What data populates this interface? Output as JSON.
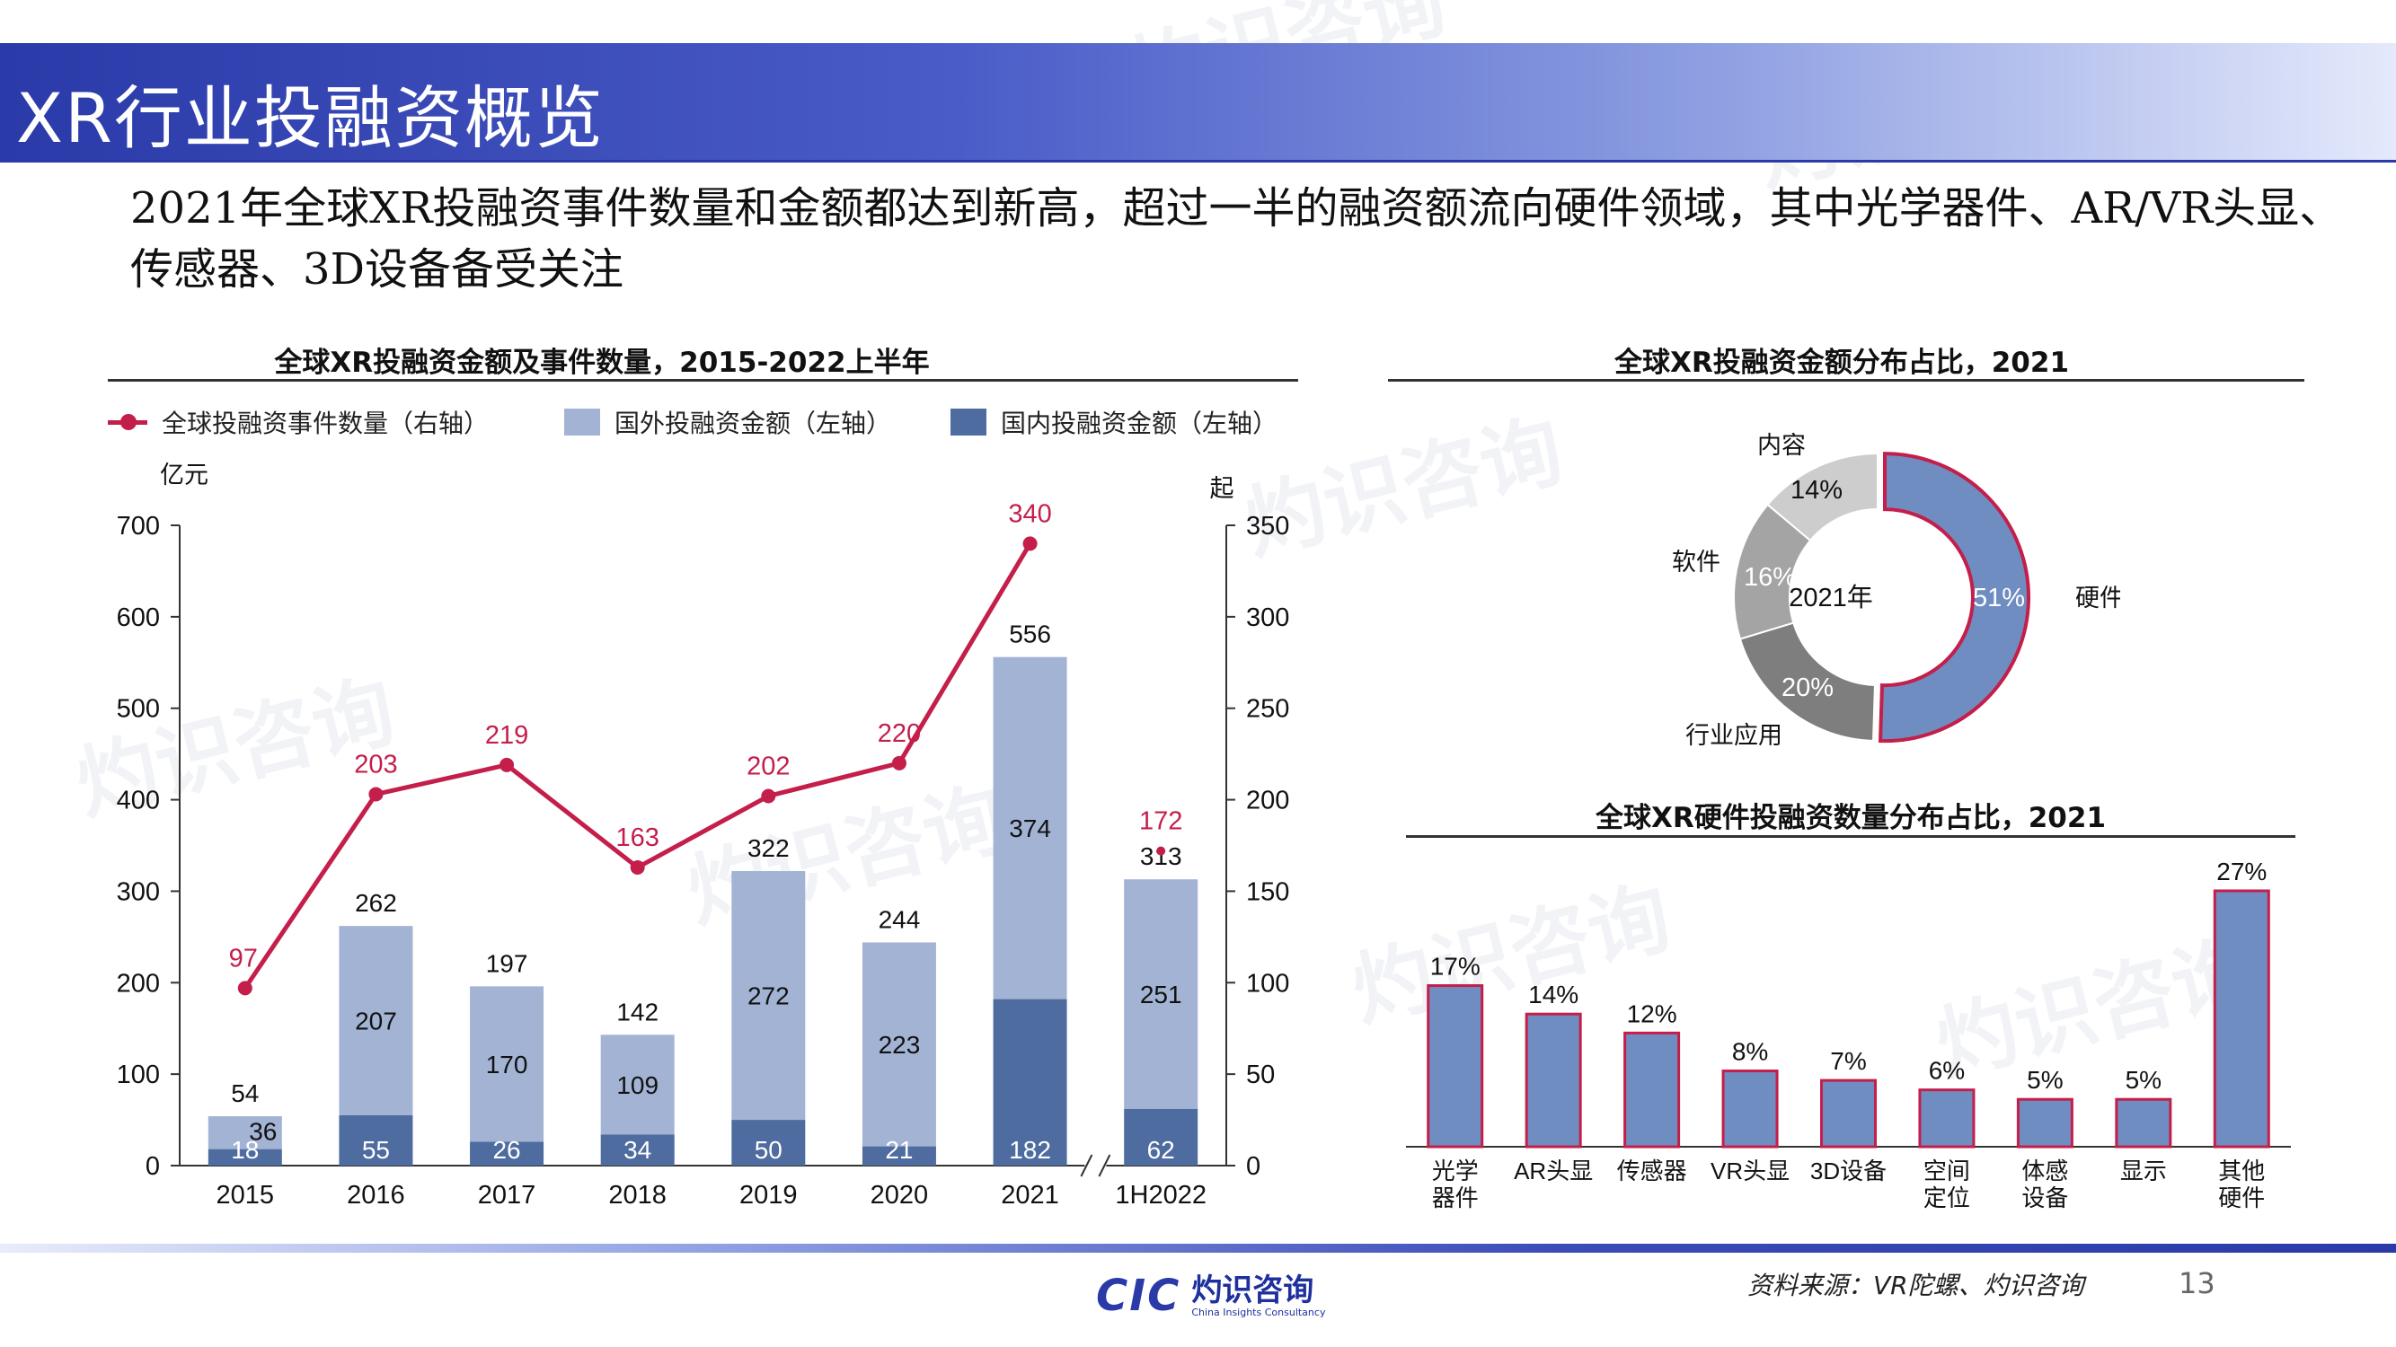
{
  "page": {
    "title": "XR行业投融资概览",
    "headline": "2021年全球XR投融资事件数量和金额都达到新高，超过一半的融资额流向硬件领域，其中光学器件、AR/VR头显、传感器、3D设备备受关注",
    "source": "资料来源：VR陀螺、灼识咨询",
    "page_number": "13",
    "logo": {
      "mark": "CIC",
      "name_cn": "灼识咨询",
      "name_en": "China Insights Consultancy"
    }
  },
  "colors": {
    "foreign": "#a3b3d4",
    "domestic": "#4e6c9f",
    "events": "#c41e4a",
    "donut_hardware": "#6f8dc1",
    "hardware_bar": "#6f8dc1",
    "hardware_bar_edge": "#c41e4a"
  },
  "chart_data": [
    {
      "type": "bar",
      "title": "全球XR投融资金额及事件数量，2015-2022上半年",
      "ylabel": "亿元",
      "y2label": "起",
      "ylim": [
        0,
        700
      ],
      "y2lim": [
        0,
        350
      ],
      "yticks": [
        "0",
        "100",
        "200",
        "300",
        "400",
        "500",
        "600",
        "700"
      ],
      "y2ticks": [
        "0",
        "50",
        "100",
        "150",
        "200",
        "250",
        "300",
        "350"
      ],
      "categories": [
        "2015",
        "2016",
        "2017",
        "2018",
        "2019",
        "2020",
        "2021",
        "1H2022"
      ],
      "stacked": true,
      "series": [
        {
          "name": "国内投融资金额（左轴）",
          "values": [
            18,
            55,
            26,
            34,
            50,
            21,
            182,
            62
          ],
          "labels": [
            "18",
            "55",
            "26",
            "34",
            "50",
            "21",
            "182",
            "62"
          ]
        },
        {
          "name": "国外投融资金额（左轴）",
          "values": [
            36,
            207,
            170,
            109,
            272,
            223,
            374,
            251
          ],
          "labels": [
            "36",
            "207",
            "170",
            "109",
            "272",
            "223",
            "374",
            "251"
          ]
        },
        {
          "name": "全球投融资事件数量（右轴）",
          "type": "line",
          "axis": "right",
          "values": [
            97,
            203,
            219,
            163,
            202,
            220,
            340,
            172
          ],
          "labels": [
            "97",
            "203",
            "219",
            "163",
            "202",
            "220",
            "340",
            "172"
          ]
        }
      ],
      "totals": [
        "54",
        "262",
        "197",
        "142",
        "322",
        "244",
        "556",
        "313"
      ],
      "axis_break_between": [
        "2021",
        "1H2022"
      ],
      "legend_position": "top"
    },
    {
      "type": "pie",
      "donut": true,
      "title": "全球XR投融资金额分布占比，2021",
      "center_label": "2021年",
      "slices": [
        {
          "name": "硬件",
          "value": 51,
          "label": "51%",
          "color": "#6f8dc1"
        },
        {
          "name": "行业应用",
          "value": 20,
          "label": "20%",
          "color": "#7e7e7e"
        },
        {
          "name": "软件",
          "value": 16,
          "label": "16%",
          "color": "#a4a4a4"
        },
        {
          "name": "内容",
          "value": 14,
          "label": "14%",
          "color": "#cdcdcd"
        }
      ]
    },
    {
      "type": "bar",
      "title": "全球XR硬件投融资数量分布占比，2021",
      "categories": [
        "光学\n器件",
        "AR头显",
        "传感器",
        "VR头显",
        "3D设备",
        "空间\n定位",
        "体感\n设备",
        "显示",
        "其他\n硬件"
      ],
      "values": [
        17,
        14,
        12,
        8,
        7,
        6,
        5,
        5,
        27
      ],
      "labels": [
        "17%",
        "14%",
        "12%",
        "8%",
        "7%",
        "6%",
        "5%",
        "5%",
        "27%"
      ],
      "unit": "%",
      "ylim": [
        0,
        27
      ]
    }
  ]
}
